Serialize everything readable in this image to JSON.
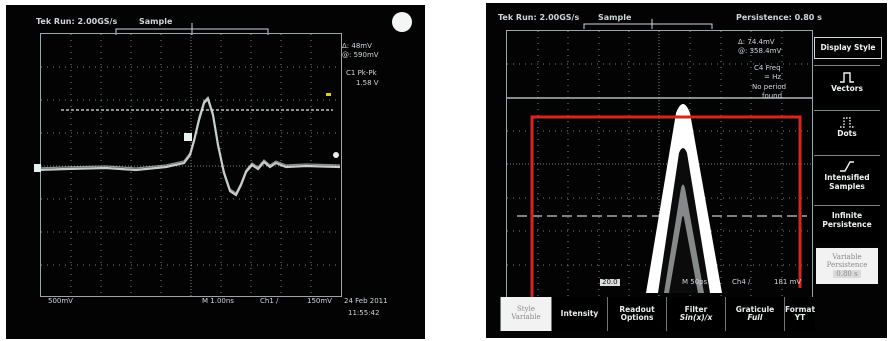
{
  "left_scope": {
    "header": {
      "status": "Tek Run: 2.00GS/s",
      "mode": "Sample"
    },
    "cursor_readout": {
      "delta": "Δ: 48mV",
      "at": "@: 590mV"
    },
    "measurement": {
      "label": "C1 Pk-Pk",
      "value": "1.58 V"
    },
    "bottom_bar": {
      "ch_scale": "500mV",
      "timebase": "M 1.00ns",
      "trigger": "Ch1 ∕",
      "level": "150mV",
      "date": "24 Feb 2011",
      "time": "11:55:42"
    }
  },
  "right_scope": {
    "header": {
      "status": "Tek Run: 2.00GS/s",
      "mode": "Sample",
      "persistence": "Persistence: 0.80 s"
    },
    "cursor_readout": {
      "delta": "Δ: 74.4mV",
      "at": "@: 358.4mV"
    },
    "measurement": {
      "label": "C4 Freq",
      "value": "= Hz",
      "note1": "No period",
      "note2": "found"
    },
    "bottom_readout": {
      "ch_scale": "20.0",
      "timebase": "M 50ps",
      "trigger": "Ch4 ∕",
      "level": "181 mV"
    },
    "side_menu": {
      "title": "Display Style",
      "items": [
        {
          "label": "Vectors",
          "icon": "vectors-icon"
        },
        {
          "label": "Dots",
          "icon": "dots-icon"
        },
        {
          "label": "Intensified Samples",
          "icon": "intensified-samples-icon"
        },
        {
          "label": "Infinite Persistence"
        }
      ],
      "variable_persistence": {
        "label": "Variable Persistence",
        "value": "0.80 s"
      }
    },
    "bottom_menu": [
      {
        "line1": "Style",
        "line2": "Variable"
      },
      {
        "line1": "Intensity",
        "line2": ""
      },
      {
        "line1": "Readout",
        "line2": "Options"
      },
      {
        "line1": "Filter",
        "line2": "Sin(x)/x"
      },
      {
        "line1": "Graticule",
        "line2": "Full"
      },
      {
        "line1": "Format",
        "line2": "YT"
      }
    ],
    "colors": {
      "highlight_box": "#d8261c",
      "trace": "#ffffff",
      "graticule": "#9aa6a8"
    }
  }
}
